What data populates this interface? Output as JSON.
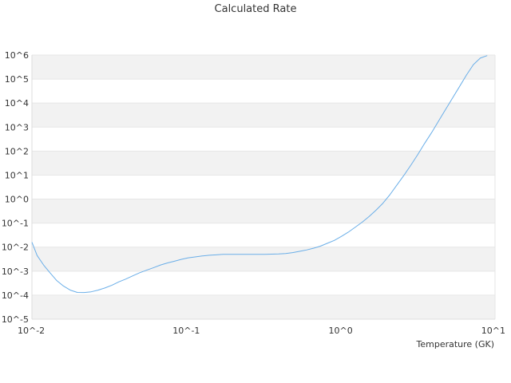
{
  "chart_data": {
    "type": "line",
    "title": "Calculated Rate",
    "xlabel": "Temperature (GK)",
    "ylabel": "",
    "x_scale": "log",
    "y_scale": "log",
    "xlim": [
      0.01,
      10
    ],
    "ylim": [
      1e-05,
      1000000
    ],
    "x_ticks": [
      0.01,
      0.1,
      1,
      10
    ],
    "x_tick_labels": [
      "10^-2",
      "10^-1",
      "10^0",
      "10^1"
    ],
    "y_ticks": [
      1e-05,
      0.0001,
      0.001,
      0.01,
      0.1,
      1,
      10,
      100,
      1000,
      10000,
      100000,
      1000000
    ],
    "y_tick_labels": [
      "10^-5",
      "10^-4",
      "10^-3",
      "10^-2",
      "10^-1",
      "10^0",
      "10^1",
      "10^2",
      "10^3",
      "10^4",
      "10^5",
      "10^6"
    ],
    "grid": "horizontal alternating bands",
    "colors": {
      "line": "#6aaee8",
      "band": "#f2f2f2",
      "grid": "#e6e6e6",
      "text": "#333333"
    },
    "series": [
      {
        "x": [
          0.01,
          0.0108,
          0.0119,
          0.0131,
          0.0145,
          0.016,
          0.0178,
          0.0197,
          0.0218,
          0.0242,
          0.0268,
          0.0297,
          0.033,
          0.0366,
          0.0406,
          0.045,
          0.0499,
          0.0554,
          0.0614,
          0.0681,
          0.0756,
          0.0838,
          0.093,
          0.103,
          0.114,
          0.127,
          0.141,
          0.156,
          0.173,
          0.192,
          0.213,
          0.236,
          0.262,
          0.29,
          0.322,
          0.357,
          0.396,
          0.44,
          0.488,
          0.541,
          0.6,
          0.666,
          0.739,
          0.82,
          0.909,
          1.01,
          1.12,
          1.24,
          1.38,
          1.53,
          1.69,
          1.88,
          2.08,
          2.31,
          2.57,
          2.85,
          3.16,
          3.5,
          3.89,
          4.31,
          4.78,
          5.3,
          5.88,
          6.52,
          7.24,
          8.03,
          8.9
        ],
        "y": [
          0.016,
          0.0045,
          0.0018,
          0.00085,
          0.0004,
          0.00024,
          0.00016,
          0.00013,
          0.000128,
          0.000138,
          0.000162,
          0.0002,
          0.00026,
          0.00036,
          0.00047,
          0.00064,
          0.00086,
          0.0011,
          0.0014,
          0.0018,
          0.0022,
          0.0026,
          0.0031,
          0.0036,
          0.0039,
          0.0043,
          0.0046,
          0.0048,
          0.005,
          0.005,
          0.005,
          0.005,
          0.005,
          0.005,
          0.005,
          0.0051,
          0.0052,
          0.0054,
          0.0059,
          0.0067,
          0.0076,
          0.009,
          0.011,
          0.0145,
          0.019,
          0.028,
          0.042,
          0.067,
          0.11,
          0.19,
          0.34,
          0.68,
          1.5,
          3.8,
          9.8,
          26,
          72,
          210,
          600,
          1800,
          5400,
          16000,
          48000,
          145000,
          400000,
          750000,
          950000
        ]
      }
    ]
  }
}
